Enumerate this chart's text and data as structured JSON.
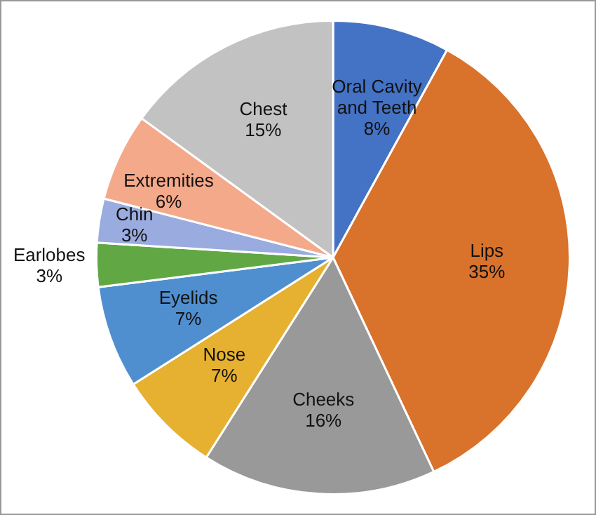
{
  "chart_data": {
    "type": "pie",
    "categories": [
      "Oral Cavity and Teeth",
      "Lips",
      "Cheeks",
      "Nose",
      "Eyelids",
      "Earlobes",
      "Chin",
      "Extremities",
      "Chest"
    ],
    "values": [
      8,
      35,
      16,
      7,
      7,
      3,
      3,
      6,
      15
    ],
    "value_labels": [
      "8%",
      "35%",
      "16%",
      "7%",
      "7%",
      "3%",
      "3%",
      "6%",
      "15%"
    ],
    "colors": [
      "#4472c4",
      "#d9722b",
      "#999999",
      "#e6b030",
      "#4f8fd0",
      "#61a845",
      "#99abdf",
      "#f4a98a",
      "#c2c2c2"
    ],
    "legend": false
  }
}
